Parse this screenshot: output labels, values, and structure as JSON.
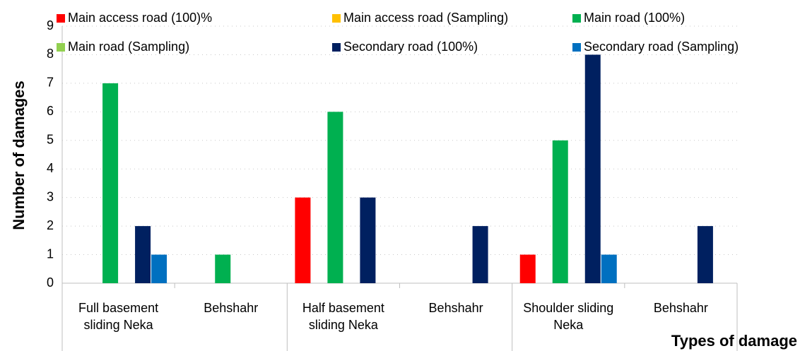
{
  "chart_data": {
    "type": "bar",
    "categories": [
      "Full basement sliding Neka",
      "Behshahr",
      "Half basement sliding Neka",
      "Behshahr",
      "Shoulder sliding Neka",
      "Behshahr"
    ],
    "series": [
      {
        "name": "Main access road (100)%",
        "color": "#ff0000",
        "values": [
          0,
          0,
          3,
          0,
          1,
          0
        ]
      },
      {
        "name": "Main access road (Sampling)",
        "color": "#ffc000",
        "values": [
          0,
          0,
          0,
          0,
          0,
          0
        ]
      },
      {
        "name": "Main road (100%)",
        "color": "#00b050",
        "values": [
          7,
          1,
          6,
          0,
          5,
          0
        ]
      },
      {
        "name": "Main road (Sampling)",
        "color": "#92d050",
        "values": [
          0,
          0,
          0,
          0,
          0,
          0
        ]
      },
      {
        "name": "Secondary road (100%)",
        "color": "#002060",
        "values": [
          2,
          0,
          3,
          2,
          8,
          2
        ]
      },
      {
        "name": "Secondary road (Sampling)",
        "color": "#0070c0",
        "values": [
          1,
          0,
          0,
          0,
          1,
          0
        ]
      }
    ],
    "ylabel": "Number of damages",
    "xlabel": "Types of damage",
    "ylim": [
      0,
      9
    ],
    "yticks": [
      0,
      1,
      2,
      3,
      4,
      5,
      6,
      7,
      8,
      9
    ],
    "grid": true
  }
}
